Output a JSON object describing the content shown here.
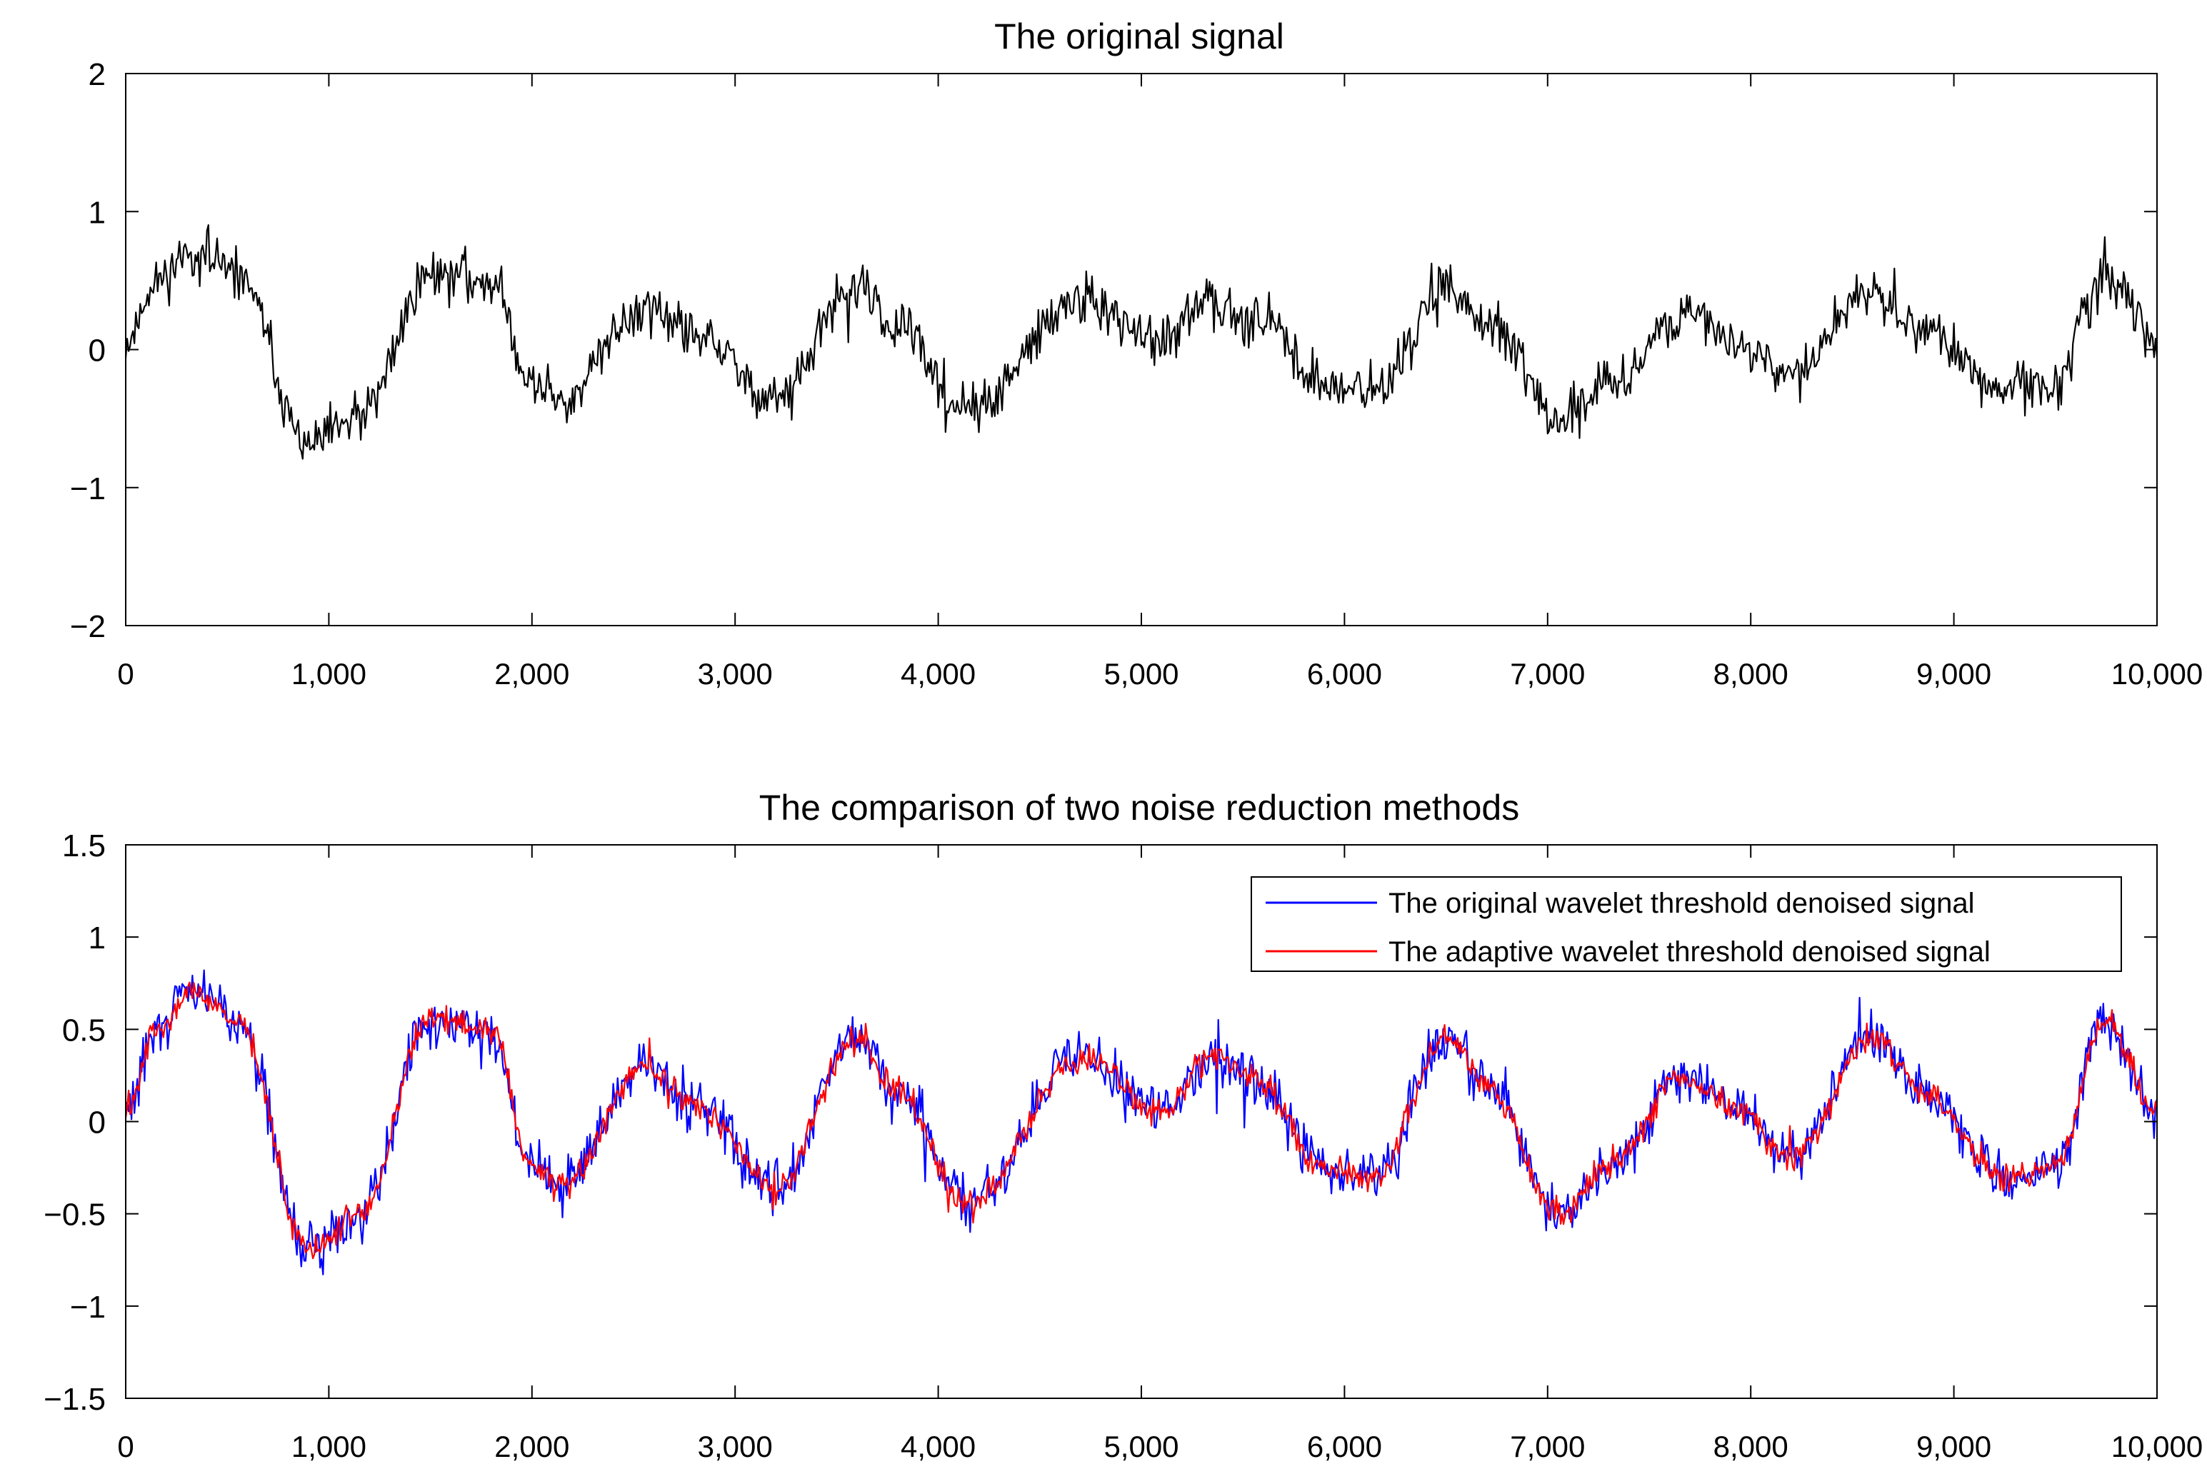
{
  "chart_data": [
    {
      "type": "line",
      "title": "The original signal",
      "xlabel": "",
      "ylabel": "",
      "xlim": [
        0,
        10000
      ],
      "ylim": [
        -2,
        2
      ],
      "x_ticks": [
        0,
        1000,
        2000,
        3000,
        4000,
        5000,
        6000,
        7000,
        8000,
        9000,
        10000
      ],
      "x_tick_labels": [
        "0",
        "1,000",
        "2,000",
        "3,000",
        "4,000",
        "5,000",
        "6,000",
        "7,000",
        "8,000",
        "9,000",
        "10,000"
      ],
      "y_ticks": [
        -2,
        -1,
        0,
        1,
        2
      ],
      "y_tick_labels": [
        "−2",
        "−1",
        "0",
        "1",
        "2"
      ],
      "grid": false,
      "legend": null,
      "series": [
        {
          "name": "original signal",
          "color": "#000000",
          "noise_amplitude": 0.17,
          "envelope_x": [
            0,
            150,
            320,
            550,
            900,
            1150,
            1500,
            1800,
            2000,
            2150,
            2550,
            2800,
            3200,
            3600,
            3800,
            4150,
            4700,
            5100,
            5350,
            5550,
            5900,
            6150,
            6500,
            6700,
            7050,
            7350,
            7650,
            7950,
            8200,
            8600,
            8850,
            9250,
            9500,
            9750,
            10000
          ],
          "envelope_y": [
            0.05,
            0.5,
            0.7,
            0.55,
            -0.7,
            -0.5,
            0.55,
            0.5,
            -0.25,
            -0.35,
            0.3,
            0.1,
            -0.35,
            0.45,
            0.15,
            -0.45,
            0.35,
            0.05,
            0.35,
            0.25,
            -0.25,
            -0.3,
            0.45,
            0.2,
            -0.5,
            -0.2,
            0.25,
            0.05,
            -0.2,
            0.45,
            0.15,
            -0.3,
            -0.25,
            0.55,
            0.05
          ]
        }
      ]
    },
    {
      "type": "line",
      "title": "The comparison of two noise reduction methods",
      "xlabel": "",
      "ylabel": "",
      "xlim": [
        0,
        10000
      ],
      "ylim": [
        -1.5,
        1.5
      ],
      "x_ticks": [
        0,
        1000,
        2000,
        3000,
        4000,
        5000,
        6000,
        7000,
        8000,
        9000,
        10000
      ],
      "x_tick_labels": [
        "0",
        "1,000",
        "2,000",
        "3,000",
        "4,000",
        "5,000",
        "6,000",
        "7,000",
        "8,000",
        "9,000",
        "10,000"
      ],
      "y_ticks": [
        -1.5,
        -1,
        -0.5,
        0,
        0.5,
        1,
        1.5
      ],
      "y_tick_labels": [
        "−1.5",
        "−1",
        "−0.5",
        "0",
        "0.5",
        "1",
        "1.5"
      ],
      "grid": false,
      "legend": "top-right",
      "series": [
        {
          "name": "The original wavelet threshold denoised signal",
          "color": "#0000ff",
          "noise_amplitude": 0.13,
          "envelope_x": [
            0,
            150,
            320,
            550,
            900,
            1150,
            1500,
            1800,
            2000,
            2150,
            2550,
            2800,
            3200,
            3600,
            3800,
            4150,
            4700,
            5100,
            5350,
            5550,
            5900,
            6150,
            6500,
            6700,
            7050,
            7350,
            7650,
            7950,
            8200,
            8600,
            8850,
            9250,
            9500,
            9750,
            10000
          ],
          "envelope_y": [
            0.05,
            0.5,
            0.7,
            0.55,
            -0.7,
            -0.5,
            0.55,
            0.5,
            -0.25,
            -0.35,
            0.3,
            0.1,
            -0.35,
            0.45,
            0.15,
            -0.45,
            0.35,
            0.05,
            0.35,
            0.25,
            -0.25,
            -0.3,
            0.45,
            0.2,
            -0.5,
            -0.2,
            0.25,
            0.05,
            -0.2,
            0.45,
            0.15,
            -0.3,
            -0.25,
            0.55,
            0.05
          ]
        },
        {
          "name": "The adaptive wavelet threshold denoised signal",
          "color": "#ff0000",
          "noise_amplitude": 0.07,
          "envelope_x": [
            0,
            150,
            320,
            550,
            900,
            1150,
            1500,
            1800,
            2000,
            2150,
            2550,
            2800,
            3200,
            3600,
            3800,
            4150,
            4700,
            5100,
            5350,
            5550,
            5900,
            6150,
            6500,
            6700,
            7050,
            7350,
            7650,
            7950,
            8200,
            8600,
            8850,
            9250,
            9500,
            9750,
            10000
          ],
          "envelope_y": [
            0.05,
            0.5,
            0.7,
            0.55,
            -0.7,
            -0.5,
            0.55,
            0.5,
            -0.25,
            -0.35,
            0.3,
            0.1,
            -0.35,
            0.45,
            0.15,
            -0.45,
            0.35,
            0.05,
            0.35,
            0.25,
            -0.25,
            -0.3,
            0.45,
            0.2,
            -0.5,
            -0.2,
            0.25,
            0.05,
            -0.2,
            0.45,
            0.15,
            -0.3,
            -0.25,
            0.55,
            0.05
          ]
        }
      ]
    }
  ]
}
